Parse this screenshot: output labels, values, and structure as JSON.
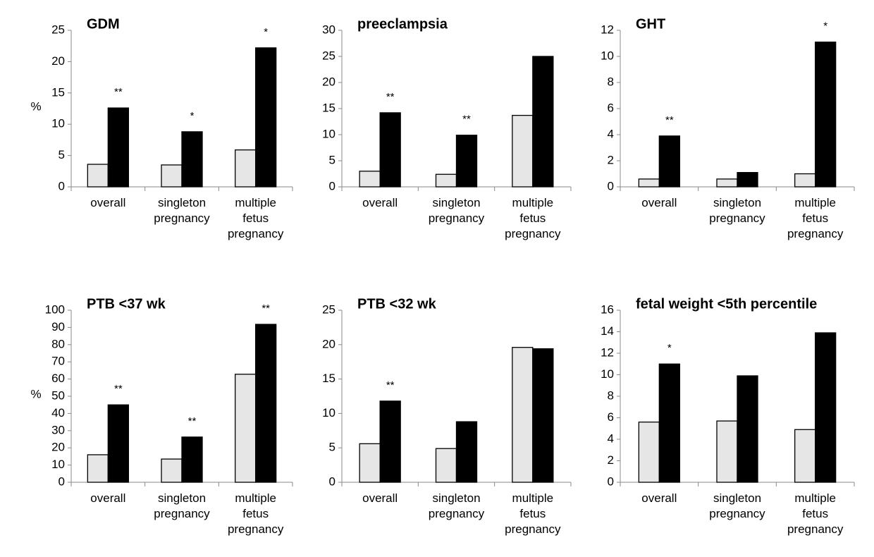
{
  "chart_data": [
    {
      "type": "bar",
      "title": "GDM",
      "ylabel": "%",
      "categories": [
        "overall",
        "singleton pregnancy",
        "multiple fetus pregnancy"
      ],
      "series": [
        {
          "color": "#e6e6e6",
          "values": [
            3.6,
            3.5,
            5.9
          ]
        },
        {
          "color": "#000000",
          "values": [
            12.6,
            8.8,
            22.2
          ]
        }
      ],
      "annotations": [
        "**",
        "*",
        "*"
      ],
      "ylim": [
        0,
        25
      ],
      "yticks": [
        0,
        5,
        10,
        15,
        20,
        25
      ]
    },
    {
      "type": "bar",
      "title": "preeclampsia",
      "categories": [
        "overall",
        "singleton pregnancy",
        "multiple fetus pregnancy"
      ],
      "series": [
        {
          "color": "#e6e6e6",
          "values": [
            3.0,
            2.4,
            13.7
          ]
        },
        {
          "color": "#000000",
          "values": [
            14.2,
            9.9,
            25.0
          ]
        }
      ],
      "annotations": [
        "**",
        "**",
        null
      ],
      "ylim": [
        0,
        30
      ],
      "yticks": [
        0,
        5,
        10,
        15,
        20,
        25,
        30
      ]
    },
    {
      "type": "bar",
      "title": "GHT",
      "categories": [
        "overall",
        "singleton pregnancy",
        "multiple fetus pregnancy"
      ],
      "series": [
        {
          "color": "#e6e6e6",
          "values": [
            0.6,
            0.6,
            1.0
          ]
        },
        {
          "color": "#000000",
          "values": [
            3.9,
            1.1,
            11.1
          ]
        }
      ],
      "annotations": [
        "**",
        null,
        "*"
      ],
      "ylim": [
        0,
        12
      ],
      "yticks": [
        0,
        2,
        4,
        6,
        8,
        10,
        12
      ]
    },
    {
      "type": "bar",
      "title": "PTB <37 wk",
      "ylabel": "%",
      "categories": [
        "overall",
        "singleton pregnancy",
        "multiple fetus pregnancy"
      ],
      "series": [
        {
          "color": "#e6e6e6",
          "values": [
            16,
            13.5,
            62.8
          ]
        },
        {
          "color": "#000000",
          "values": [
            45,
            26.3,
            91.8
          ]
        }
      ],
      "annotations": [
        "**",
        "**",
        "**"
      ],
      "ylim": [
        0,
        100
      ],
      "yticks": [
        0,
        10,
        20,
        30,
        40,
        50,
        60,
        70,
        80,
        90,
        100
      ]
    },
    {
      "type": "bar",
      "title": "PTB <32 wk",
      "categories": [
        "overall",
        "singleton pregnancy",
        "multiple fetus pregnancy"
      ],
      "series": [
        {
          "color": "#e6e6e6",
          "values": [
            5.6,
            4.9,
            19.6
          ]
        },
        {
          "color": "#000000",
          "values": [
            11.8,
            8.8,
            19.4
          ]
        }
      ],
      "annotations": [
        "**",
        null,
        null
      ],
      "ylim": [
        0,
        25
      ],
      "yticks": [
        0,
        5,
        10,
        15,
        20,
        25
      ]
    },
    {
      "type": "bar",
      "title": "fetal weight <5th percentile",
      "categories": [
        "overall",
        "singleton pregnancy",
        "multiple fetus pregnancy"
      ],
      "series": [
        {
          "color": "#e6e6e6",
          "values": [
            5.6,
            5.7,
            4.9
          ]
        },
        {
          "color": "#000000",
          "values": [
            11.0,
            9.9,
            13.9
          ]
        }
      ],
      "annotations": [
        "*",
        null,
        null
      ],
      "ylim": [
        0,
        16
      ],
      "yticks": [
        0,
        2,
        4,
        6,
        8,
        10,
        12,
        14,
        16
      ]
    }
  ]
}
